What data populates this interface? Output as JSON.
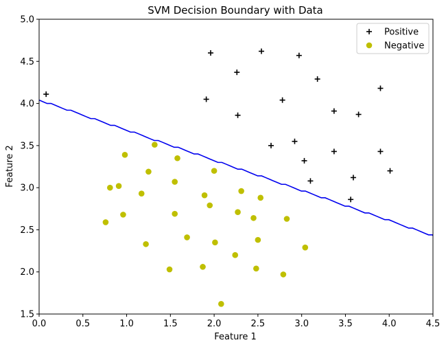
{
  "chart_data": {
    "type": "scatter",
    "title": "SVM Decision Boundary with Data",
    "xlabel": "Feature 1",
    "ylabel": "Feature 2",
    "xlim": [
      0.0,
      4.5
    ],
    "ylim": [
      1.5,
      5.0
    ],
    "xticks": [
      "0.0",
      "0.5",
      "1.0",
      "1.5",
      "2.0",
      "2.5",
      "3.0",
      "3.5",
      "4.0",
      "4.5"
    ],
    "yticks": [
      "1.5",
      "2.0",
      "2.5",
      "3.0",
      "3.5",
      "4.0",
      "4.5",
      "5.0"
    ],
    "grid": false,
    "legend_position": "top-right",
    "series": [
      {
        "name": "Positive",
        "marker": "plus",
        "color": "#000000",
        "points": [
          [
            0.08,
            4.11
          ],
          [
            1.96,
            4.6
          ],
          [
            2.54,
            4.62
          ],
          [
            2.97,
            4.57
          ],
          [
            2.26,
            4.37
          ],
          [
            3.18,
            4.29
          ],
          [
            3.9,
            4.18
          ],
          [
            1.91,
            4.05
          ],
          [
            2.78,
            4.04
          ],
          [
            2.27,
            3.86
          ],
          [
            3.37,
            3.91
          ],
          [
            3.65,
            3.87
          ],
          [
            2.65,
            3.5
          ],
          [
            2.92,
            3.55
          ],
          [
            3.37,
            3.43
          ],
          [
            3.9,
            3.43
          ],
          [
            3.03,
            3.32
          ],
          [
            4.01,
            3.2
          ],
          [
            3.1,
            3.08
          ],
          [
            3.59,
            3.12
          ],
          [
            3.56,
            2.86
          ]
        ]
      },
      {
        "name": "Negative",
        "marker": "circle",
        "color": "#bfbf00",
        "points": [
          [
            0.98,
            3.39
          ],
          [
            1.32,
            3.51
          ],
          [
            1.58,
            3.35
          ],
          [
            1.25,
            3.19
          ],
          [
            2.0,
            3.2
          ],
          [
            0.81,
            3.0
          ],
          [
            0.91,
            3.02
          ],
          [
            1.55,
            3.07
          ],
          [
            1.17,
            2.93
          ],
          [
            1.89,
            2.91
          ],
          [
            2.31,
            2.96
          ],
          [
            2.53,
            2.88
          ],
          [
            1.95,
            2.79
          ],
          [
            0.76,
            2.59
          ],
          [
            0.96,
            2.68
          ],
          [
            1.55,
            2.69
          ],
          [
            2.27,
            2.71
          ],
          [
            2.45,
            2.64
          ],
          [
            2.83,
            2.63
          ],
          [
            1.69,
            2.41
          ],
          [
            1.22,
            2.33
          ],
          [
            2.01,
            2.35
          ],
          [
            2.5,
            2.38
          ],
          [
            3.04,
            2.29
          ],
          [
            2.24,
            2.2
          ],
          [
            1.49,
            2.03
          ],
          [
            1.87,
            2.06
          ],
          [
            2.48,
            2.04
          ],
          [
            2.79,
            1.97
          ],
          [
            2.08,
            1.62
          ]
        ]
      }
    ],
    "decision_boundary": {
      "color": "#0000ee",
      "x": [
        0.0,
        4.5
      ],
      "y": [
        4.04,
        2.43
      ],
      "step_x": 0.0454
    }
  }
}
